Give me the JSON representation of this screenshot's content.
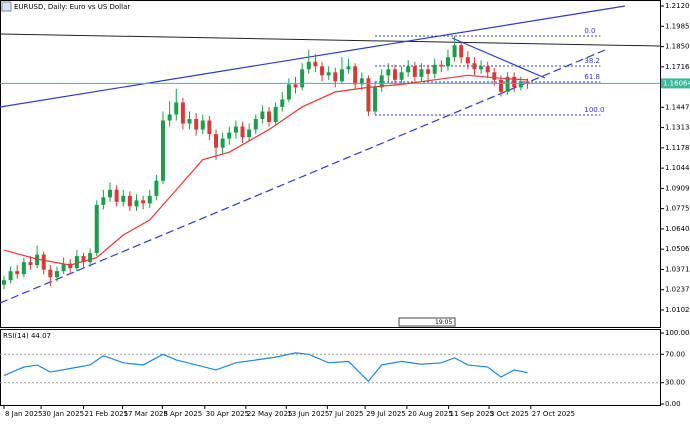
{
  "chart_data": {
    "type": "candlestick",
    "title": "EURUSD, Daily:  Euro vs US Dollar",
    "countdown": "19:05",
    "up_color": "#1a9e4b",
    "down_color": "#d83a3a",
    "open": [
      1.027,
      1.03,
      1.036,
      1.034,
      1.042,
      1.04,
      1.047,
      1.037,
      1.032,
      1.036,
      1.041,
      1.038,
      1.046,
      1.042,
      1.048,
      1.08,
      1.085,
      1.09,
      1.082,
      1.086,
      1.079,
      1.083,
      1.081,
      1.086,
      1.096,
      1.136,
      1.14,
      1.148,
      1.134,
      1.137,
      1.13,
      1.136,
      1.127,
      1.118,
      1.124,
      1.128,
      1.132,
      1.125,
      1.13,
      1.137,
      1.142,
      1.135,
      1.145,
      1.15,
      1.16,
      1.158,
      1.17,
      1.175,
      1.172,
      1.166,
      1.168,
      1.162,
      1.17,
      1.172,
      1.16,
      1.164,
      1.142,
      1.158,
      1.166,
      1.17,
      1.163,
      1.168,
      1.172,
      1.165,
      1.17,
      1.167,
      1.173,
      1.172,
      1.178,
      1.186,
      1.178,
      1.174,
      1.17,
      1.172,
      1.168,
      1.163,
      1.155,
      1.165,
      1.158,
      1.162
    ],
    "high": [
      1.033,
      1.039,
      1.04,
      1.045,
      1.046,
      1.053,
      1.049,
      1.04,
      1.039,
      1.045,
      1.044,
      1.05,
      1.048,
      1.051,
      1.083,
      1.09,
      1.095,
      1.093,
      1.09,
      1.089,
      1.087,
      1.086,
      1.09,
      1.1,
      1.142,
      1.149,
      1.157,
      1.151,
      1.142,
      1.141,
      1.14,
      1.139,
      1.13,
      1.128,
      1.132,
      1.136,
      1.135,
      1.134,
      1.14,
      1.146,
      1.145,
      1.148,
      1.155,
      1.164,
      1.165,
      1.174,
      1.183,
      1.18,
      1.175,
      1.172,
      1.171,
      1.178,
      1.177,
      1.174,
      1.168,
      1.166,
      1.162,
      1.17,
      1.174,
      1.173,
      1.172,
      1.176,
      1.175,
      1.174,
      1.173,
      1.177,
      1.176,
      1.183,
      1.192,
      1.188,
      1.182,
      1.178,
      1.176,
      1.175,
      1.171,
      1.166,
      1.168,
      1.168,
      1.165,
      1.164
    ],
    "low": [
      1.024,
      1.028,
      1.031,
      1.032,
      1.037,
      1.038,
      1.034,
      1.026,
      1.029,
      1.034,
      1.035,
      1.036,
      1.038,
      1.039,
      1.046,
      1.077,
      1.082,
      1.079,
      1.079,
      1.076,
      1.076,
      1.077,
      1.078,
      1.083,
      1.094,
      1.132,
      1.136,
      1.13,
      1.13,
      1.126,
      1.127,
      1.123,
      1.11,
      1.114,
      1.12,
      1.124,
      1.121,
      1.122,
      1.127,
      1.134,
      1.132,
      1.133,
      1.142,
      1.148,
      1.154,
      1.156,
      1.167,
      1.168,
      1.162,
      1.163,
      1.158,
      1.16,
      1.167,
      1.157,
      1.156,
      1.139,
      1.14,
      1.155,
      1.162,
      1.16,
      1.16,
      1.165,
      1.162,
      1.162,
      1.163,
      1.164,
      1.168,
      1.169,
      1.175,
      1.174,
      1.17,
      1.166,
      1.167,
      1.164,
      1.159,
      1.152,
      1.153,
      1.155,
      1.156,
      1.157
    ],
    "close": [
      1.03,
      1.036,
      1.034,
      1.042,
      1.04,
      1.047,
      1.037,
      1.032,
      1.036,
      1.041,
      1.038,
      1.046,
      1.042,
      1.048,
      1.08,
      1.085,
      1.09,
      1.082,
      1.086,
      1.079,
      1.083,
      1.081,
      1.086,
      1.096,
      1.136,
      1.14,
      1.148,
      1.134,
      1.137,
      1.13,
      1.136,
      1.127,
      1.118,
      1.124,
      1.128,
      1.132,
      1.125,
      1.13,
      1.137,
      1.142,
      1.135,
      1.145,
      1.15,
      1.16,
      1.158,
      1.17,
      1.175,
      1.172,
      1.166,
      1.168,
      1.162,
      1.17,
      1.172,
      1.16,
      1.164,
      1.142,
      1.158,
      1.166,
      1.17,
      1.163,
      1.168,
      1.172,
      1.165,
      1.17,
      1.167,
      1.173,
      1.172,
      1.178,
      1.186,
      1.178,
      1.174,
      1.17,
      1.172,
      1.168,
      1.163,
      1.155,
      1.165,
      1.158,
      1.162,
      1.16064
    ],
    "ma": {
      "color": "#e53935",
      "x": [
        0,
        5,
        10,
        14,
        18,
        22,
        25,
        30,
        34,
        40,
        45,
        50,
        55,
        60,
        65,
        70,
        75,
        79
      ],
      "values": [
        1.05,
        1.044,
        1.04,
        1.045,
        1.06,
        1.07,
        1.085,
        1.11,
        1.115,
        1.13,
        1.145,
        1.155,
        1.158,
        1.16,
        1.163,
        1.166,
        1.164,
        1.163
      ]
    },
    "fib": {
      "x": [
        56,
        90
      ],
      "color": "#2b3cc4",
      "levels": [
        {
          "label": "0.0",
          "value": 1.1921
        },
        {
          "label": "38.2",
          "value": 1.1722
        },
        {
          "label": "61.8",
          "value": 1.1616
        },
        {
          "label": "100.0",
          "value": 1.1397
        }
      ]
    },
    "xlim": [
      -0.6,
      99
    ],
    "xticks": [
      {
        "value": 0,
        "label": "8 Jan 2025"
      },
      {
        "value": 5.6,
        "label": "30 Jan 2025"
      },
      {
        "value": 12,
        "label": "21 Feb 2025"
      },
      {
        "value": 17.9,
        "label": "17 Mar 2025"
      },
      {
        "value": 23.9,
        "label": "8 Apr 2025"
      },
      {
        "value": 30.3,
        "label": "30 Apr 2025"
      },
      {
        "value": 36.5,
        "label": "22 May 2025"
      },
      {
        "value": 42.6,
        "label": "13 Jun 2025"
      },
      {
        "value": 48.8,
        "label": "7 Jul 2025"
      },
      {
        "value": 54.5,
        "label": "29 Jul 2025"
      },
      {
        "value": 60.8,
        "label": "20 Aug 2025"
      },
      {
        "value": 67.1,
        "label": "11 Sep 2025"
      },
      {
        "value": 73.2,
        "label": "3 Oct 2025"
      },
      {
        "value": 79.5,
        "label": "27 Oct 2025"
      }
    ],
    "ylim": [
      0.9996,
      1.216
    ],
    "yticks": [
      {
        "value": 1.212,
        "label": "1.21200"
      },
      1.19855,
      1.18505,
      1.17165,
      1.14475,
      {
        "value": 1.1313,
        "label": "1.13130"
      },
      1.11785,
      {
        "value": 1.1044,
        "label": "1.10440"
      },
      1.09095,
      {
        "value": 1.0775,
        "label": "1.07750"
      },
      1.06405,
      {
        "value": 1.0506,
        "label": "1.05060"
      },
      1.03715,
      {
        "value": 1.0237,
        "label": "1.02370"
      },
      1.01025
    ],
    "rsi": {
      "label": "RSI(14) 44.07",
      "color": "#1e88e5",
      "x": [
        0,
        3,
        5,
        7,
        10,
        13,
        15,
        18,
        21,
        24,
        26,
        29,
        32,
        35,
        38,
        41,
        44,
        46,
        49,
        52,
        55,
        57,
        60,
        63,
        66,
        68,
        70,
        73,
        75,
        77,
        79
      ],
      "values": [
        40,
        52,
        55,
        45,
        50,
        55,
        68,
        58,
        55,
        70,
        62,
        55,
        48,
        58,
        62,
        66,
        72,
        70,
        58,
        60,
        32,
        55,
        60,
        56,
        58,
        65,
        55,
        52,
        38,
        48,
        44.07
      ],
      "ylim": [
        0,
        100
      ],
      "yticks": [
        {
          "value": 100,
          "label": "100.00"
        },
        {
          "value": 70,
          "label": "70.00"
        },
        {
          "value": 30,
          "label": "30.00"
        },
        {
          "value": 0,
          "label": "0.00"
        }
      ],
      "levels": [
        70,
        30
      ]
    }
  }
}
